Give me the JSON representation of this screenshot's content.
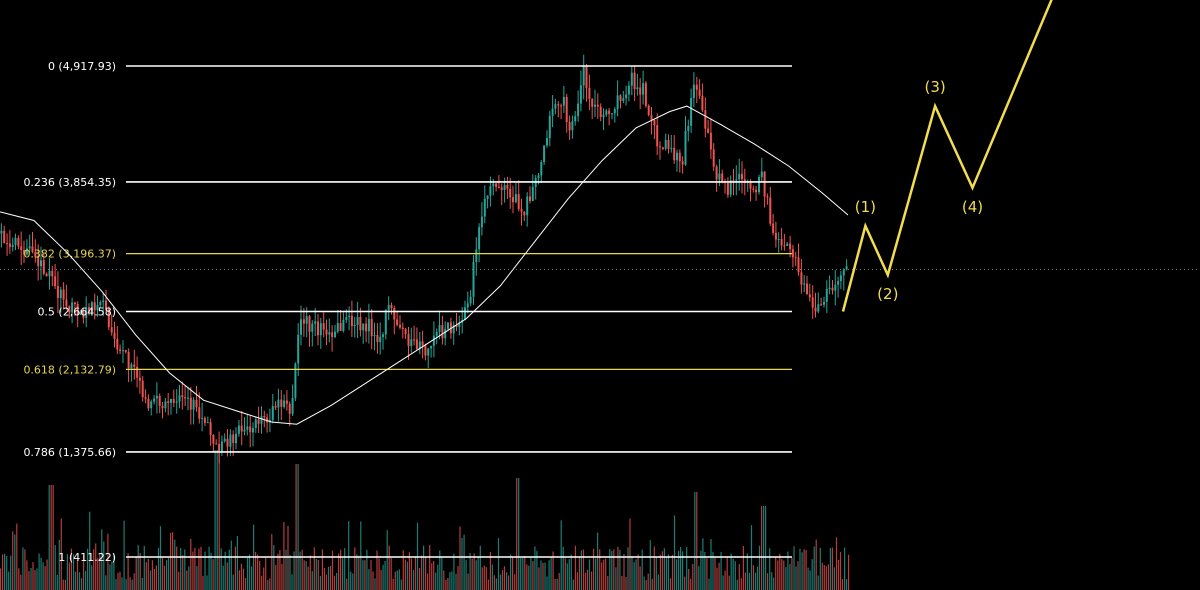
{
  "chart_data": {
    "type": "candlestick",
    "title": "",
    "xlabel": "",
    "ylabel": "",
    "colors": {
      "background": "#000000",
      "fib_line": "#ffffff",
      "fib_golden": "#e8d44d",
      "bull": "#26a69a",
      "bear": "#ef5350",
      "moving_average": "#ffffff",
      "projection": "#f2dc52"
    },
    "fib_levels": [
      {
        "label": "0 (4,917.93)",
        "ratio": 0,
        "price": 4917.93,
        "color": "#ffffff"
      },
      {
        "label": "0.236 (3,854.35)",
        "ratio": 0.236,
        "price": 3854.35,
        "color": "#ffffff"
      },
      {
        "label": "0.382 (3,196.37)",
        "ratio": 0.382,
        "price": 3196.37,
        "color": "#e8d44d"
      },
      {
        "label": "0.5 (2,664.58)",
        "ratio": 0.5,
        "price": 2664.58,
        "color": "#ffffff"
      },
      {
        "label": "0.618 (2,132.79)",
        "ratio": 0.618,
        "price": 2132.79,
        "color": "#e8d44d"
      },
      {
        "label": "0.786 (1,375.66)",
        "ratio": 0.786,
        "price": 1375.66,
        "color": "#ffffff"
      },
      {
        "label": "1 (411.22)",
        "ratio": 1,
        "price": 411.22,
        "color": "#ffffff"
      }
    ],
    "price_path": [
      [
        0,
        3380
      ],
      [
        0.03,
        3250
      ],
      [
        0.05,
        3080
      ],
      [
        0.065,
        2900
      ],
      [
        0.08,
        2750
      ],
      [
        0.1,
        2650
      ],
      [
        0.12,
        2800
      ],
      [
        0.135,
        2450
      ],
      [
        0.15,
        2250
      ],
      [
        0.165,
        2000
      ],
      [
        0.18,
        1800
      ],
      [
        0.2,
        1850
      ],
      [
        0.215,
        1950
      ],
      [
        0.23,
        1800
      ],
      [
        0.245,
        1600
      ],
      [
        0.26,
        1400
      ],
      [
        0.275,
        1500
      ],
      [
        0.29,
        1580
      ],
      [
        0.31,
        1650
      ],
      [
        0.33,
        1800
      ],
      [
        0.345,
        1750
      ],
      [
        0.355,
        2600
      ],
      [
        0.37,
        2520
      ],
      [
        0.39,
        2480
      ],
      [
        0.41,
        2600
      ],
      [
        0.43,
        2560
      ],
      [
        0.45,
        2440
      ],
      [
        0.46,
        2700
      ],
      [
        0.48,
        2420
      ],
      [
        0.5,
        2300
      ],
      [
        0.52,
        2480
      ],
      [
        0.54,
        2560
      ],
      [
        0.555,
        2700
      ],
      [
        0.565,
        3400
      ],
      [
        0.58,
        3800
      ],
      [
        0.6,
        3750
      ],
      [
        0.62,
        3600
      ],
      [
        0.635,
        3850
      ],
      [
        0.65,
        4400
      ],
      [
        0.665,
        4650
      ],
      [
        0.675,
        4300
      ],
      [
        0.69,
        4850
      ],
      [
        0.7,
        4550
      ],
      [
        0.715,
        4500
      ],
      [
        0.73,
        4600
      ],
      [
        0.745,
        4800
      ],
      [
        0.76,
        4700
      ],
      [
        0.775,
        4250
      ],
      [
        0.79,
        4200
      ],
      [
        0.805,
        4000
      ],
      [
        0.82,
        4800
      ],
      [
        0.835,
        4300
      ],
      [
        0.845,
        3900
      ],
      [
        0.86,
        3800
      ],
      [
        0.875,
        3950
      ],
      [
        0.89,
        3800
      ],
      [
        0.9,
        3900
      ],
      [
        0.915,
        3300
      ],
      [
        0.93,
        3350
      ],
      [
        0.945,
        3000
      ],
      [
        0.955,
        2800
      ],
      [
        0.965,
        2700
      ],
      [
        0.975,
        2850
      ],
      [
        0.985,
        2900
      ],
      [
        1,
        3050
      ]
    ],
    "moving_average": [
      [
        0,
        3580
      ],
      [
        0.04,
        3500
      ],
      [
        0.08,
        3200
      ],
      [
        0.12,
        2850
      ],
      [
        0.16,
        2450
      ],
      [
        0.2,
        2100
      ],
      [
        0.24,
        1850
      ],
      [
        0.28,
        1750
      ],
      [
        0.32,
        1650
      ],
      [
        0.35,
        1630
      ],
      [
        0.39,
        1800
      ],
      [
        0.43,
        2000
      ],
      [
        0.47,
        2200
      ],
      [
        0.51,
        2400
      ],
      [
        0.55,
        2600
      ],
      [
        0.59,
        2900
      ],
      [
        0.63,
        3300
      ],
      [
        0.67,
        3700
      ],
      [
        0.71,
        4050
      ],
      [
        0.75,
        4350
      ],
      [
        0.79,
        4500
      ],
      [
        0.81,
        4550
      ],
      [
        0.85,
        4380
      ],
      [
        0.89,
        4200
      ],
      [
        0.93,
        4000
      ],
      [
        0.97,
        3750
      ],
      [
        1,
        3550
      ]
    ],
    "volume_spikes": [
      {
        "t": 0.06,
        "v": 0.75
      },
      {
        "t": 0.255,
        "v": 1.0
      },
      {
        "t": 0.35,
        "v": 0.9
      },
      {
        "t": 0.61,
        "v": 0.8
      },
      {
        "t": 0.82,
        "v": 0.7
      },
      {
        "t": 0.9,
        "v": 0.6
      }
    ],
    "wave_projection": [
      {
        "label": "",
        "t": 0,
        "price": 2664.58
      },
      {
        "label": "(1)",
        "t": 0.09,
        "price": 3450
      },
      {
        "label": "(2)",
        "t": 0.18,
        "price": 3000
      },
      {
        "label": "(3)",
        "t": 0.37,
        "price": 4550
      },
      {
        "label": "(4)",
        "t": 0.52,
        "price": 3800
      },
      {
        "label": "",
        "t": 0.98,
        "price": 6300
      }
    ]
  }
}
